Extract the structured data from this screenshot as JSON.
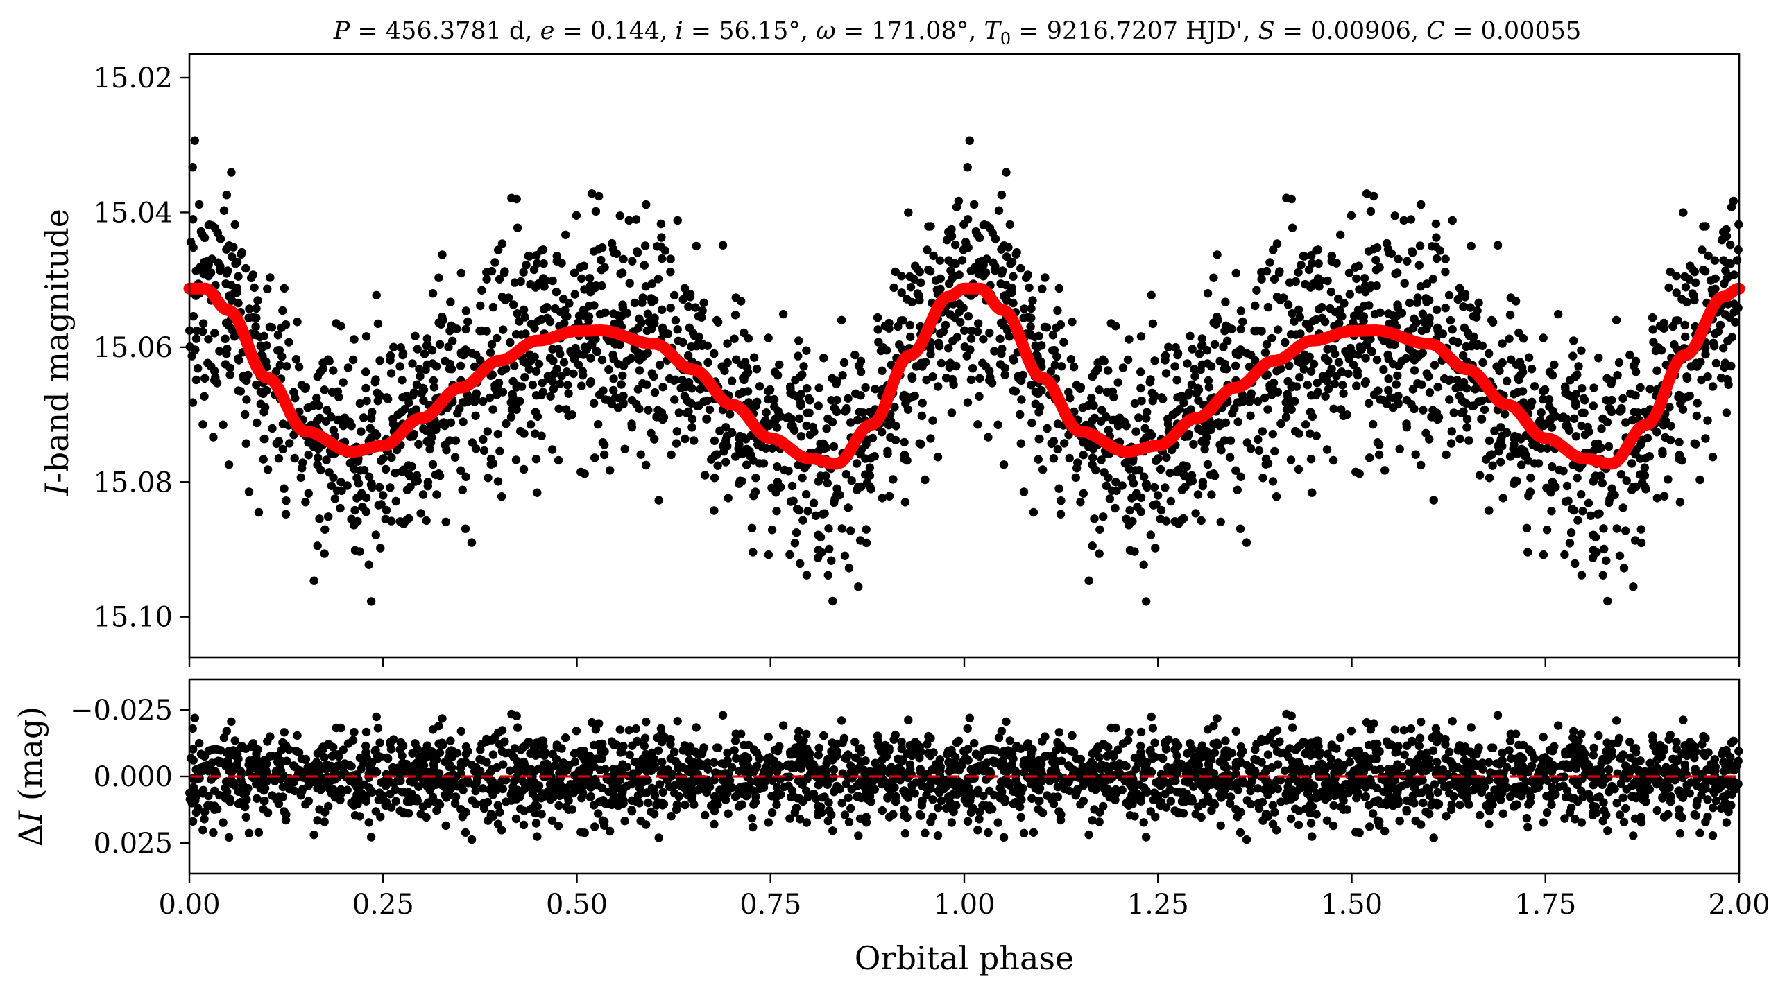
{
  "chart_data": [
    {
      "type": "scatter",
      "panel": "top",
      "title": "P = 456.3781 d, e = 0.144, i = 56.15°, ω = 171.08°, T0 = 9216.7207 HJD', S = 0.00906, C = 0.00055",
      "title_parts": {
        "P": "P",
        "P_val": " = 456.3781 d, ",
        "e": "e",
        "e_val": " = 0.144, ",
        "i": "i",
        "i_val": " = 56.15°, ",
        "omega": "ω",
        "omega_val": " = 171.08°, ",
        "T": "T",
        "T_sub": "0",
        "T_val": " = 9216.7207 HJD', ",
        "S": "S",
        "S_val": " = 0.00906, ",
        "C": "C",
        "C_val": " = 0.00055"
      },
      "ylabel_italic": "I",
      "ylabel_rest": "-band magnitude",
      "ylim": [
        15.106,
        15.0165
      ],
      "yticks": [
        15.02,
        15.04,
        15.06,
        15.08,
        15.1
      ],
      "ytick_labels": [
        "15.02",
        "15.04",
        "15.06",
        "15.08",
        "15.10"
      ],
      "xlim": [
        0.0,
        2.0
      ],
      "series": [
        {
          "name": "observations",
          "style": "black points",
          "n_points_per_cycle": 1500,
          "phase_range": [
            0.0,
            1.0
          ],
          "repeated_at_phase_offset": 1.0,
          "scatter_sigma_mag": 0.0085
        },
        {
          "name": "model",
          "style": "red line",
          "x": [
            0.0,
            0.02,
            0.05,
            0.1,
            0.15,
            0.21,
            0.25,
            0.3,
            0.35,
            0.4,
            0.45,
            0.5,
            0.53,
            0.6,
            0.65,
            0.7,
            0.75,
            0.8,
            0.835,
            0.88,
            0.93,
            0.98,
            1.0
          ],
          "y": [
            15.0513,
            15.0513,
            15.0545,
            15.0645,
            15.0725,
            15.0755,
            15.0746,
            15.0705,
            15.066,
            15.062,
            15.059,
            15.0576,
            15.0575,
            15.0595,
            15.0633,
            15.0685,
            15.0735,
            15.0765,
            15.0773,
            15.0715,
            15.0612,
            15.0525,
            15.0513
          ]
        }
      ]
    },
    {
      "type": "scatter",
      "panel": "bottom",
      "xlabel": "Orbital phase",
      "ylabel_prefix": "Δ",
      "ylabel_italic": "I",
      "ylabel_rest": " (mag)",
      "xlim": [
        0.0,
        2.0
      ],
      "ylim": [
        0.0365,
        -0.0365
      ],
      "xticks": [
        0.0,
        0.25,
        0.5,
        0.75,
        1.0,
        1.25,
        1.5,
        1.75,
        2.0
      ],
      "xtick_labels": [
        "0.00",
        "0.25",
        "0.50",
        "0.75",
        "1.00",
        "1.25",
        "1.50",
        "1.75",
        "2.00"
      ],
      "yticks": [
        -0.025,
        0.0,
        0.025
      ],
      "ytick_labels": [
        "−0.025",
        "0.000",
        "0.025"
      ],
      "series": [
        {
          "name": "residuals",
          "style": "black points",
          "sigma_mag": 0.0085
        },
        {
          "name": "zero line",
          "style": "red dashed",
          "y": 0.0
        }
      ]
    }
  ],
  "colors": {
    "points": "#000000",
    "model": "#ff0000",
    "zero_line": "#e00000"
  }
}
